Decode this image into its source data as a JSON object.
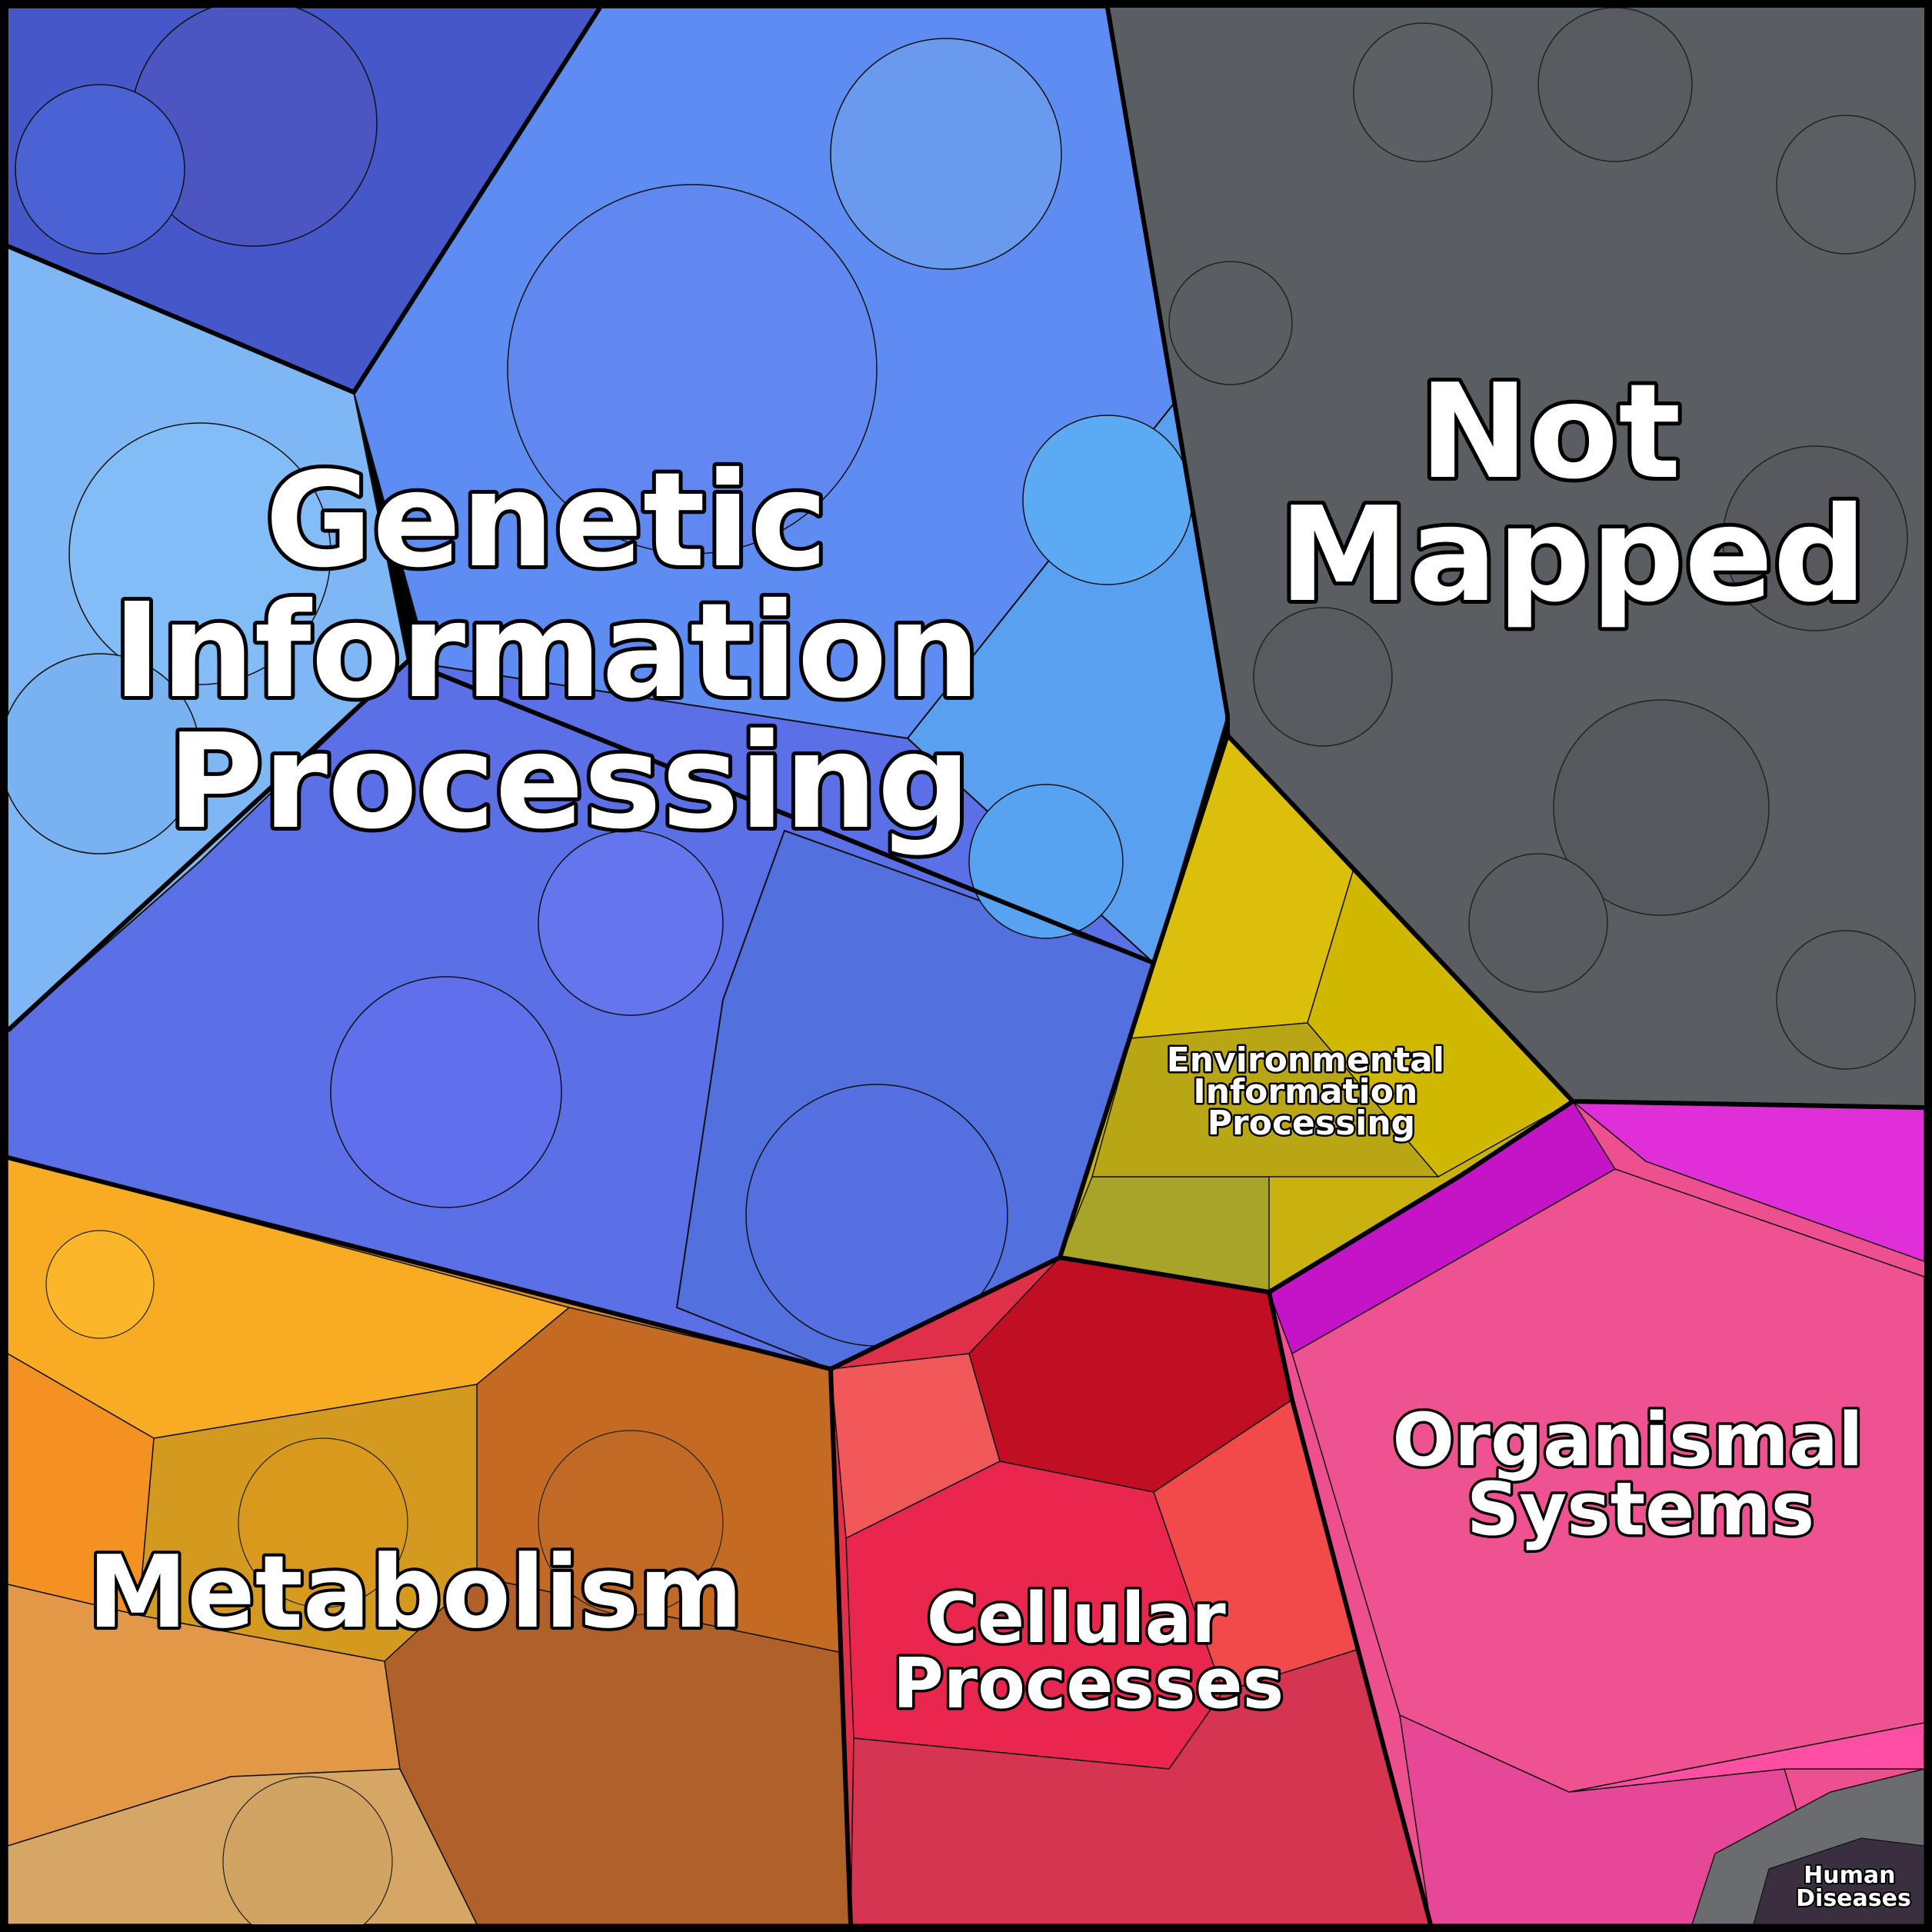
{
  "categories": [
    {
      "key": "genetic",
      "lines": [
        "Genetic",
        "Information",
        "Processing"
      ],
      "color": "#5b86f0"
    },
    {
      "key": "not-mapped",
      "lines": [
        "Not",
        "Mapped"
      ],
      "color": "#5a5d62"
    },
    {
      "key": "environmental",
      "lines": [
        "Environmental",
        "Information",
        "Processing"
      ],
      "color": "#c9b210"
    },
    {
      "key": "metabolism",
      "lines": [
        "Metabolism"
      ],
      "color": "#d98a2c"
    },
    {
      "key": "cellular",
      "lines": [
        "Cellular",
        "Processes"
      ],
      "color": "#e02f48"
    },
    {
      "key": "organismal",
      "lines": [
        "Organismal",
        "Systems"
      ],
      "color": "#ee4f8f"
    },
    {
      "key": "human-diseases",
      "lines": [
        "Human",
        "Diseases"
      ],
      "color": "#6b6c70"
    }
  ]
}
